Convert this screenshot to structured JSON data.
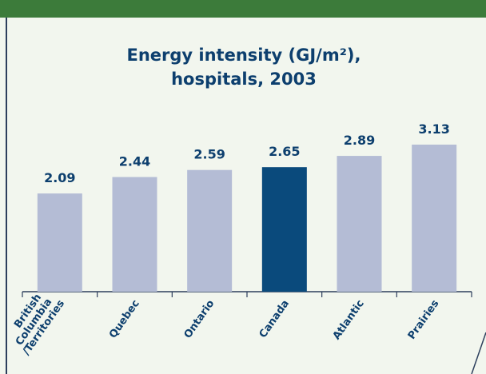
{
  "chart_data": {
    "type": "bar",
    "title": [
      "Energy intensity (GJ/m²),",
      "hospitals, 2003"
    ],
    "categories": [
      "British Columbia /Territories",
      "Quebec",
      "Ontario",
      "Canada",
      "Atlantic",
      "Prairies"
    ],
    "values": [
      2.09,
      2.44,
      2.59,
      2.65,
      2.89,
      3.13
    ],
    "colors": [
      "#b4bcd5",
      "#b4bcd5",
      "#b4bcd5",
      "#0a4a7c",
      "#b4bcd5",
      "#b4bcd5"
    ]
  }
}
